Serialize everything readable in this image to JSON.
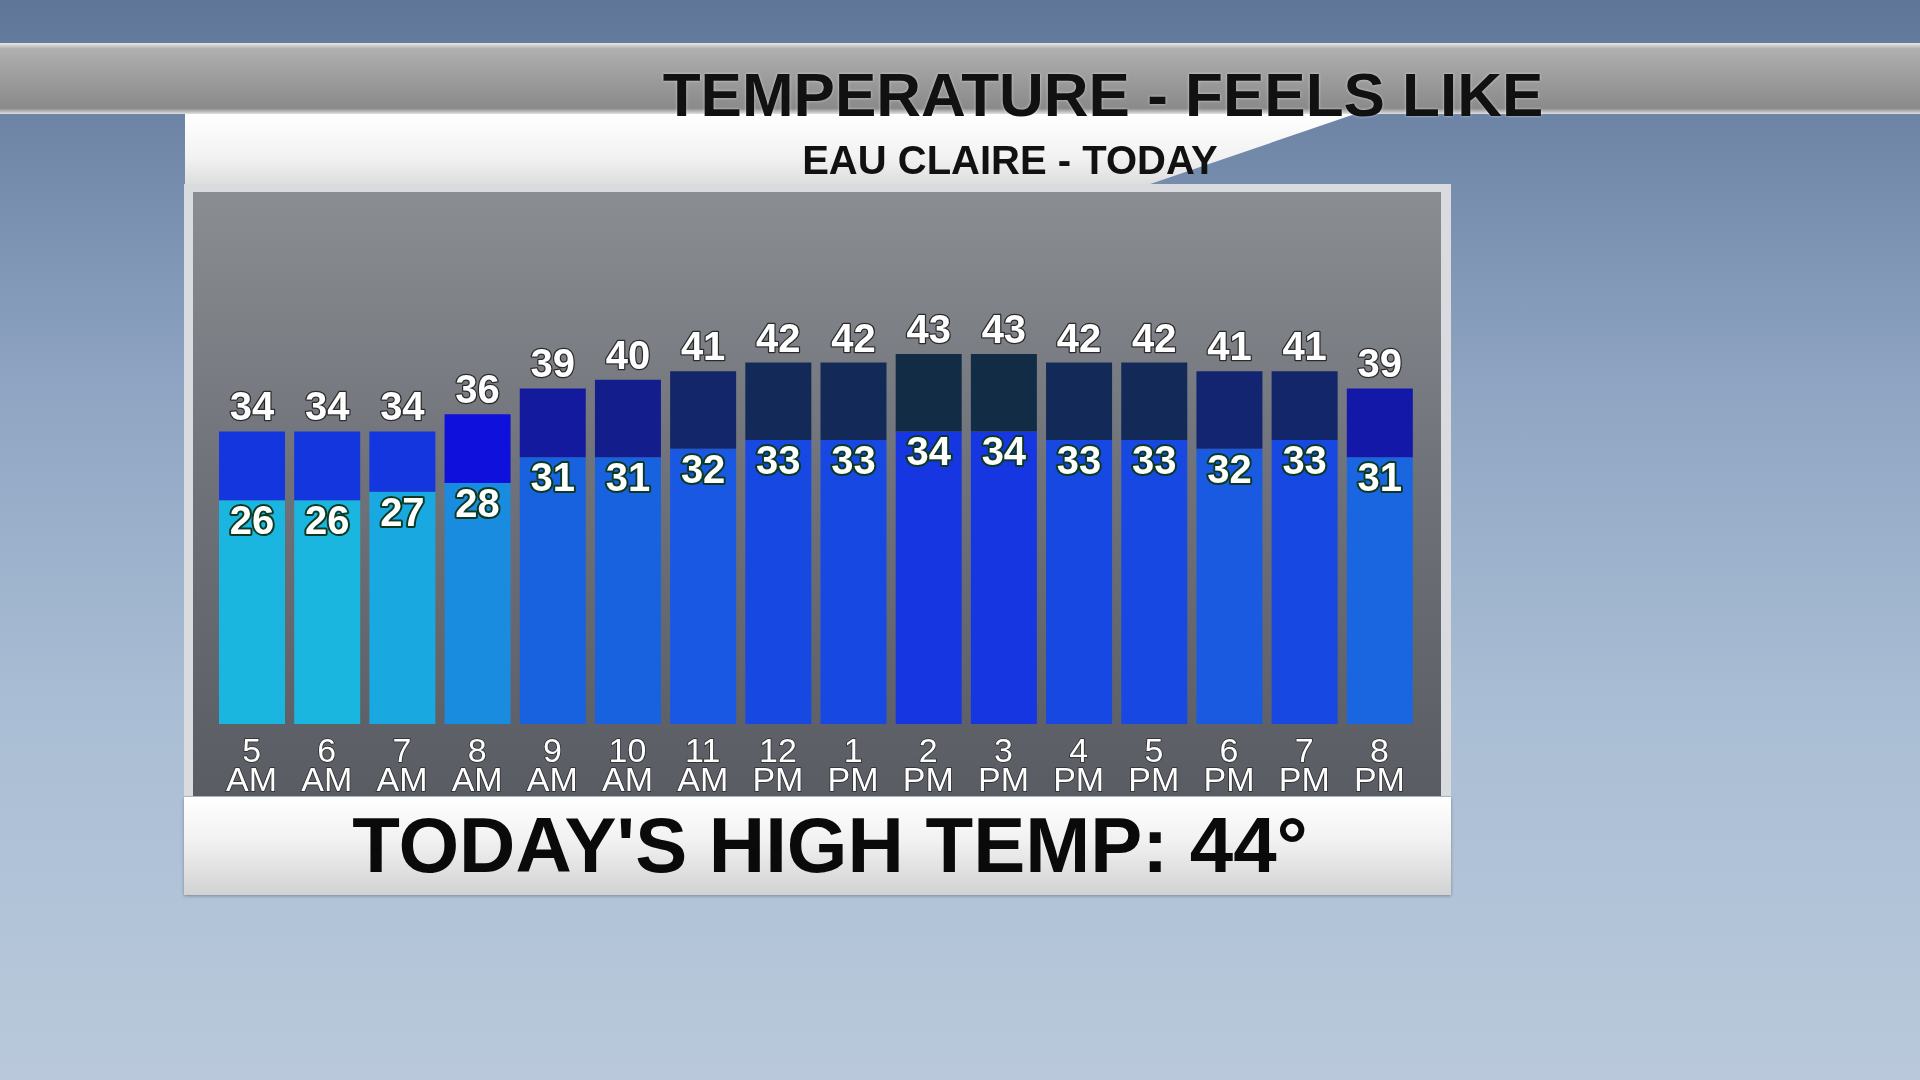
{
  "chart_data": {
    "type": "bar",
    "title": "TEMPERATURE - FEELS LIKE",
    "subtitle": "EAU CLAIRE - TODAY",
    "categories": [
      "5 AM",
      "6 AM",
      "7 AM",
      "8 AM",
      "9 AM",
      "10 AM",
      "11 AM",
      "12 PM",
      "1 PM",
      "2 PM",
      "3 PM",
      "4 PM",
      "5 PM",
      "6 PM",
      "7 PM",
      "8 PM"
    ],
    "stacked": true,
    "series": [
      {
        "values": [
          26,
          26,
          27,
          28,
          31,
          31,
          32,
          33,
          33,
          34,
          34,
          33,
          33,
          32,
          33,
          31
        ],
        "colors": [
          "#1bb6e0",
          "#1bb6e0",
          "#1aa8e0",
          "#1a8ce0",
          "#1862e0",
          "#1862e0",
          "#1858e2",
          "#1748e2",
          "#1748e2",
          "#1636e2",
          "#1636e2",
          "#1748e2",
          "#1748e2",
          "#195ae0",
          "#1748e2",
          "#1966e0"
        ],
        "value_labels": [
          "26",
          "26",
          "27",
          "28",
          "31",
          "31",
          "32",
          "33",
          "33",
          "34",
          "34",
          "33",
          "33",
          "32",
          "33",
          "31"
        ]
      },
      {
        "values": [
          8,
          8,
          7,
          8,
          8,
          9,
          9,
          9,
          9,
          9,
          9,
          9,
          9,
          9,
          8,
          8
        ],
        "colors": [
          "#1436de",
          "#1436de",
          "#1436de",
          "#1010dc",
          "#131a9e",
          "#131e8c",
          "#13266a",
          "#132a58",
          "#132a58",
          "#122c46",
          "#122c46",
          "#132a58",
          "#132a58",
          "#132470",
          "#13266a",
          "#1418a8"
        ]
      }
    ],
    "totals": [
      "34",
      "34",
      "34",
      "36",
      "39",
      "40",
      "41",
      "42",
      "42",
      "43",
      "43",
      "42",
      "42",
      "41",
      "41",
      "39"
    ],
    "annotations": [
      "TODAY'S HIGH TEMP: 44°"
    ]
  }
}
